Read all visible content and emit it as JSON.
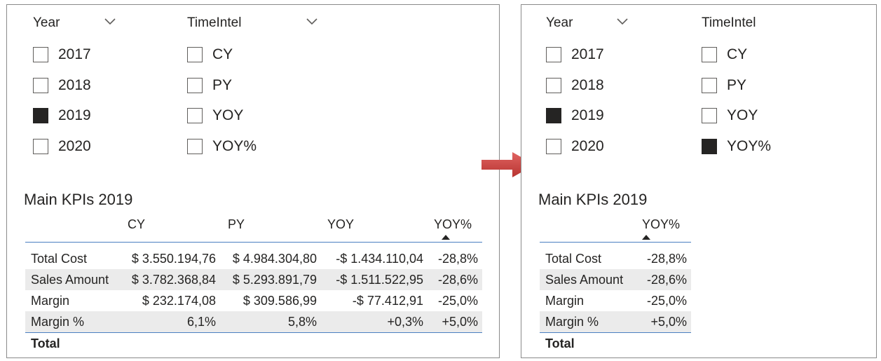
{
  "left_panel": {
    "year_slicer": {
      "title": "Year",
      "options": [
        {
          "label": "2017",
          "checked": false
        },
        {
          "label": "2018",
          "checked": false
        },
        {
          "label": "2019",
          "checked": true
        },
        {
          "label": "2020",
          "checked": false
        }
      ]
    },
    "timeintel_slicer": {
      "title": "TimeIntel",
      "options": [
        {
          "label": "CY",
          "checked": false
        },
        {
          "label": "PY",
          "checked": false
        },
        {
          "label": "YOY",
          "checked": false
        },
        {
          "label": "YOY%",
          "checked": false
        }
      ]
    },
    "kpi_title": "Main KPIs 2019",
    "matrix": {
      "columns": [
        "CY",
        "PY",
        "YOY",
        "YOY%"
      ],
      "sorted_column": "YOY%",
      "rows": [
        {
          "label": "Total Cost",
          "values": [
            "$ 3.550.194,76",
            "$ 4.984.304,80",
            "-$ 1.434.110,04",
            "-28,8%"
          ]
        },
        {
          "label": "Sales Amount",
          "values": [
            "$ 3.782.368,84",
            "$ 5.293.891,79",
            "-$ 1.511.522,95",
            "-28,6%"
          ]
        },
        {
          "label": "Margin",
          "values": [
            "$ 232.174,08",
            "$ 309.586,99",
            "-$ 77.412,91",
            "-25,0%"
          ]
        },
        {
          "label": "Margin %",
          "values": [
            "6,1%",
            "5,8%",
            "+0,3%",
            "+5,0%"
          ]
        }
      ],
      "total_label": "Total"
    }
  },
  "right_panel": {
    "year_slicer": {
      "title": "Year",
      "options": [
        {
          "label": "2017",
          "checked": false
        },
        {
          "label": "2018",
          "checked": false
        },
        {
          "label": "2019",
          "checked": true
        },
        {
          "label": "2020",
          "checked": false
        }
      ]
    },
    "timeintel_slicer": {
      "title": "TimeIntel",
      "options": [
        {
          "label": "CY",
          "checked": false
        },
        {
          "label": "PY",
          "checked": false
        },
        {
          "label": "YOY",
          "checked": false
        },
        {
          "label": "YOY%",
          "checked": true
        }
      ]
    },
    "kpi_title": "Main KPIs 2019",
    "matrix": {
      "columns": [
        "YOY%"
      ],
      "sorted_column": "YOY%",
      "rows": [
        {
          "label": "Total Cost",
          "values": [
            "-28,8%"
          ]
        },
        {
          "label": "Sales Amount",
          "values": [
            "-28,6%"
          ]
        },
        {
          "label": "Margin",
          "values": [
            "-25,0%"
          ]
        },
        {
          "label": "Margin %",
          "values": [
            "+5,0%"
          ]
        }
      ],
      "total_label": "Total"
    }
  },
  "colors": {
    "arrow": "#d64541",
    "checked_box": "#252423",
    "header_line": "#4a7fc1",
    "alt_row": "#ebebeb"
  },
  "icons": {
    "dropdown": "chevron-down-icon",
    "sort": "sort-ascending-icon",
    "transition": "arrow-right-icon"
  }
}
